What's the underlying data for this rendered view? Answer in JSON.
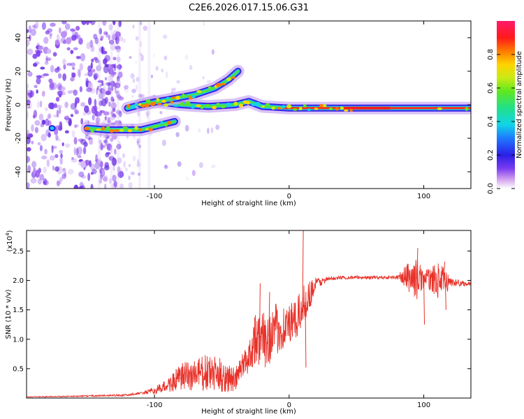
{
  "title": "C2E6.2026.017.15.06.G31",
  "chart_data": [
    {
      "type": "heatmap",
      "name": "spectrogram",
      "xlabel": "Height of straight line (km)",
      "ylabel": "Frequency (Hz)",
      "xlim": [
        -195,
        135
      ],
      "ylim": [
        -50,
        50
      ],
      "xticks": [
        -100,
        0,
        100
      ],
      "xtick_labels": [
        "-100",
        "0",
        "100"
      ],
      "yticks": [
        -40,
        -20,
        0,
        20,
        40
      ],
      "ytick_labels": [
        "-40",
        "-20",
        "0",
        "20",
        "40"
      ],
      "colorbar": {
        "label": "Normalized spectral amplitude",
        "range": [
          0,
          1
        ],
        "ticks": [
          0.0,
          0.2,
          0.4,
          0.6,
          0.8
        ],
        "tick_labels": [
          "0.0",
          "0.2",
          "0.4",
          "0.6",
          "0.8"
        ]
      },
      "tracks": [
        {
          "name": "main-track",
          "points": [
            [
              -120,
              -2
            ],
            [
              -100,
              2
            ],
            [
              -80,
              0
            ],
            [
              -60,
              -1
            ],
            [
              -40,
              0
            ],
            [
              -30,
              2
            ],
            [
              -20,
              -1
            ],
            [
              0,
              -2
            ],
            [
              50,
              -2
            ],
            [
              100,
              -2
            ],
            [
              135,
              -2
            ]
          ]
        },
        {
          "name": "upper-branch",
          "points": [
            [
              -110,
              0
            ],
            [
              -90,
              3
            ],
            [
              -70,
              6
            ],
            [
              -55,
              10
            ],
            [
              -45,
              15
            ],
            [
              -38,
              20
            ]
          ]
        },
        {
          "name": "lower-branch",
          "points": [
            [
              -150,
              -14
            ],
            [
              -135,
              -15
            ],
            [
              -125,
              -15
            ],
            [
              -110,
              -15
            ],
            [
              -95,
              -12
            ],
            [
              -85,
              -10
            ]
          ]
        }
      ]
    },
    {
      "type": "line",
      "name": "snr",
      "xlabel": "Height of straight line (km)",
      "ylabel": "SNR (10 * v/v)",
      "exponent_label": "(x10",
      "exponent": "4",
      "xlim": [
        -195,
        135
      ],
      "ylim": [
        0,
        2.85
      ],
      "xticks": [
        -100,
        0,
        100
      ],
      "xtick_labels": [
        "-100",
        "0",
        "100"
      ],
      "yticks": [
        0.5,
        1.0,
        1.5,
        2.0,
        2.5
      ],
      "ytick_labels": [
        "0.5",
        "1.0",
        "1.5",
        "2.0",
        "2.5"
      ],
      "color": "#e8322a",
      "envelope": {
        "x": [
          -195,
          -160,
          -120,
          -100,
          -90,
          -80,
          -70,
          -60,
          -50,
          -40,
          -35,
          -30,
          -25,
          -20,
          -15,
          -10,
          -5,
          0,
          5,
          10,
          15,
          20,
          30,
          40,
          60,
          80,
          88,
          95,
          100,
          105,
          110,
          115,
          120,
          135
        ],
        "y": [
          0.02,
          0.03,
          0.05,
          0.12,
          0.22,
          0.35,
          0.4,
          0.42,
          0.38,
          0.3,
          0.55,
          0.7,
          1.05,
          0.95,
          1.05,
          1.15,
          1.2,
          1.25,
          1.3,
          1.55,
          1.75,
          1.95,
          2.03,
          2.05,
          2.05,
          2.05,
          2.06,
          2.02,
          2.03,
          2.02,
          2.0,
          1.98,
          1.97,
          1.94
        ]
      },
      "amplitude": {
        "x": [
          -195,
          -110,
          -100,
          -90,
          -80,
          -70,
          -60,
          -50,
          -40,
          -35,
          -30,
          -25,
          -20,
          -15,
          -10,
          -5,
          0,
          5,
          10,
          15,
          20,
          25,
          30,
          80,
          88,
          95,
          100,
          105,
          110,
          115,
          120,
          135
        ],
        "y": [
          0.005,
          0.02,
          0.06,
          0.12,
          0.25,
          0.3,
          0.32,
          0.3,
          0.2,
          0.2,
          0.3,
          0.45,
          0.5,
          0.5,
          0.45,
          0.4,
          0.35,
          0.35,
          0.35,
          0.25,
          0.12,
          0.06,
          0.03,
          0.03,
          0.25,
          0.35,
          0.15,
          0.2,
          0.3,
          0.25,
          0.08,
          0.03
        ]
      },
      "peaks": [
        [
          -22,
          1.95
        ],
        [
          -15,
          1.8
        ],
        [
          -10,
          1.55
        ],
        [
          10,
          2.85
        ],
        [
          12,
          0.52
        ],
        [
          95,
          2.55
        ],
        [
          100,
          1.25
        ],
        [
          115,
          2.32
        ],
        [
          116,
          1.5
        ]
      ]
    }
  ]
}
